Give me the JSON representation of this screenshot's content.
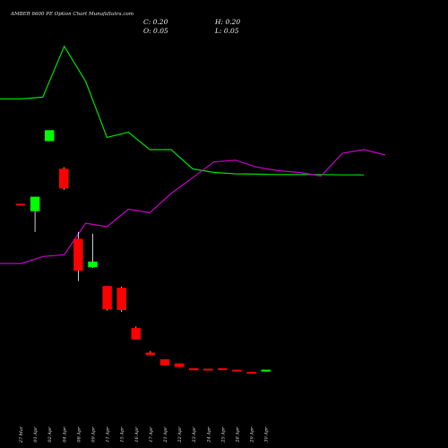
{
  "header": {
    "title": "AMBER 6600  PE Option  Chart MunafaSutra.com",
    "close_label": "C: 0.20",
    "high_label": "H: 0.20",
    "open_label": "O: 0.05",
    "low_label": "L: 0.05"
  },
  "chart_data": {
    "type": "candlestick",
    "colors": {
      "background": "#000000",
      "up": "#00ff00",
      "down": "#ff0000",
      "line_green": "#00dd00",
      "line_magenta": "#cc00cc"
    },
    "price_range": [
      0,
      1100
    ],
    "candles": [
      {
        "date": "27 Mar",
        "open": 620,
        "high": 620,
        "low": 618,
        "close": 618
      },
      {
        "date": "01 Apr",
        "open": 600,
        "high": 640,
        "low": 540,
        "close": 640
      },
      {
        "date": "02 Apr",
        "open": 800,
        "high": 830,
        "low": 800,
        "close": 830
      },
      {
        "date": "04 Apr",
        "open": 720,
        "high": 725,
        "low": 660,
        "close": 665
      },
      {
        "date": "08 Apr",
        "open": 520,
        "high": 540,
        "low": 400,
        "close": 430
      },
      {
        "date": "09 Apr",
        "open": 440,
        "high": 535,
        "low": 437,
        "close": 455
      },
      {
        "date": "11 Apr",
        "open": 385,
        "high": 385,
        "low": 316,
        "close": 320
      },
      {
        "date": "15 Apr",
        "open": 380,
        "high": 384,
        "low": 312,
        "close": 318
      },
      {
        "date": "16 Apr",
        "open": 265,
        "high": 270,
        "low": 233,
        "close": 234
      },
      {
        "date": "17 Apr",
        "open": 195,
        "high": 200,
        "low": 188,
        "close": 189
      },
      {
        "date": "21 Apr",
        "open": 176,
        "high": 176,
        "low": 159,
        "close": 160
      },
      {
        "date": "22 Apr",
        "open": 164,
        "high": 164,
        "low": 154,
        "close": 155
      },
      {
        "date": "23 Apr",
        "open": 150,
        "high": 150,
        "low": 146,
        "close": 146
      },
      {
        "date": "24 Apr",
        "open": 149,
        "high": 149,
        "low": 146,
        "close": 146
      },
      {
        "date": "25 Apr",
        "open": 150,
        "high": 150,
        "low": 147,
        "close": 147
      },
      {
        "date": "28 Apr",
        "open": 146,
        "high": 146,
        "low": 143,
        "close": 143
      },
      {
        "date": "29 Apr",
        "open": 140,
        "high": 140,
        "low": 138,
        "close": 138
      },
      {
        "date": "30 Apr",
        "open": 143,
        "high": 146,
        "low": 143,
        "close": 146
      }
    ],
    "x_tick_labels": [
      "27 Mar",
      "01 Apr",
      "02 Apr",
      "04 Apr",
      "08 Apr",
      "09 Apr",
      "11 Apr",
      "15 Apr",
      "16 Apr",
      "17 Apr",
      "21 Apr",
      "22 Apr",
      "23 Apr",
      "24 Apr",
      "25 Apr",
      "28 Apr",
      "29 Apr",
      "30 Apr"
    ],
    "lines": [
      {
        "color": "#00dd00",
        "values": [
          920,
          920,
          925,
          1070,
          970,
          810,
          825,
          775,
          775,
          720,
          710,
          706,
          705,
          704,
          704,
          704,
          703,
          703
        ]
      },
      {
        "color": "#cc00cc",
        "values": [
          450,
          450,
          470,
          475,
          565,
          555,
          605,
          595,
          650,
          695,
          740,
          745,
          725,
          715,
          710,
          700,
          765,
          775,
          760
        ]
      }
    ],
    "line_x_domain": [
      0,
      18
    ]
  }
}
